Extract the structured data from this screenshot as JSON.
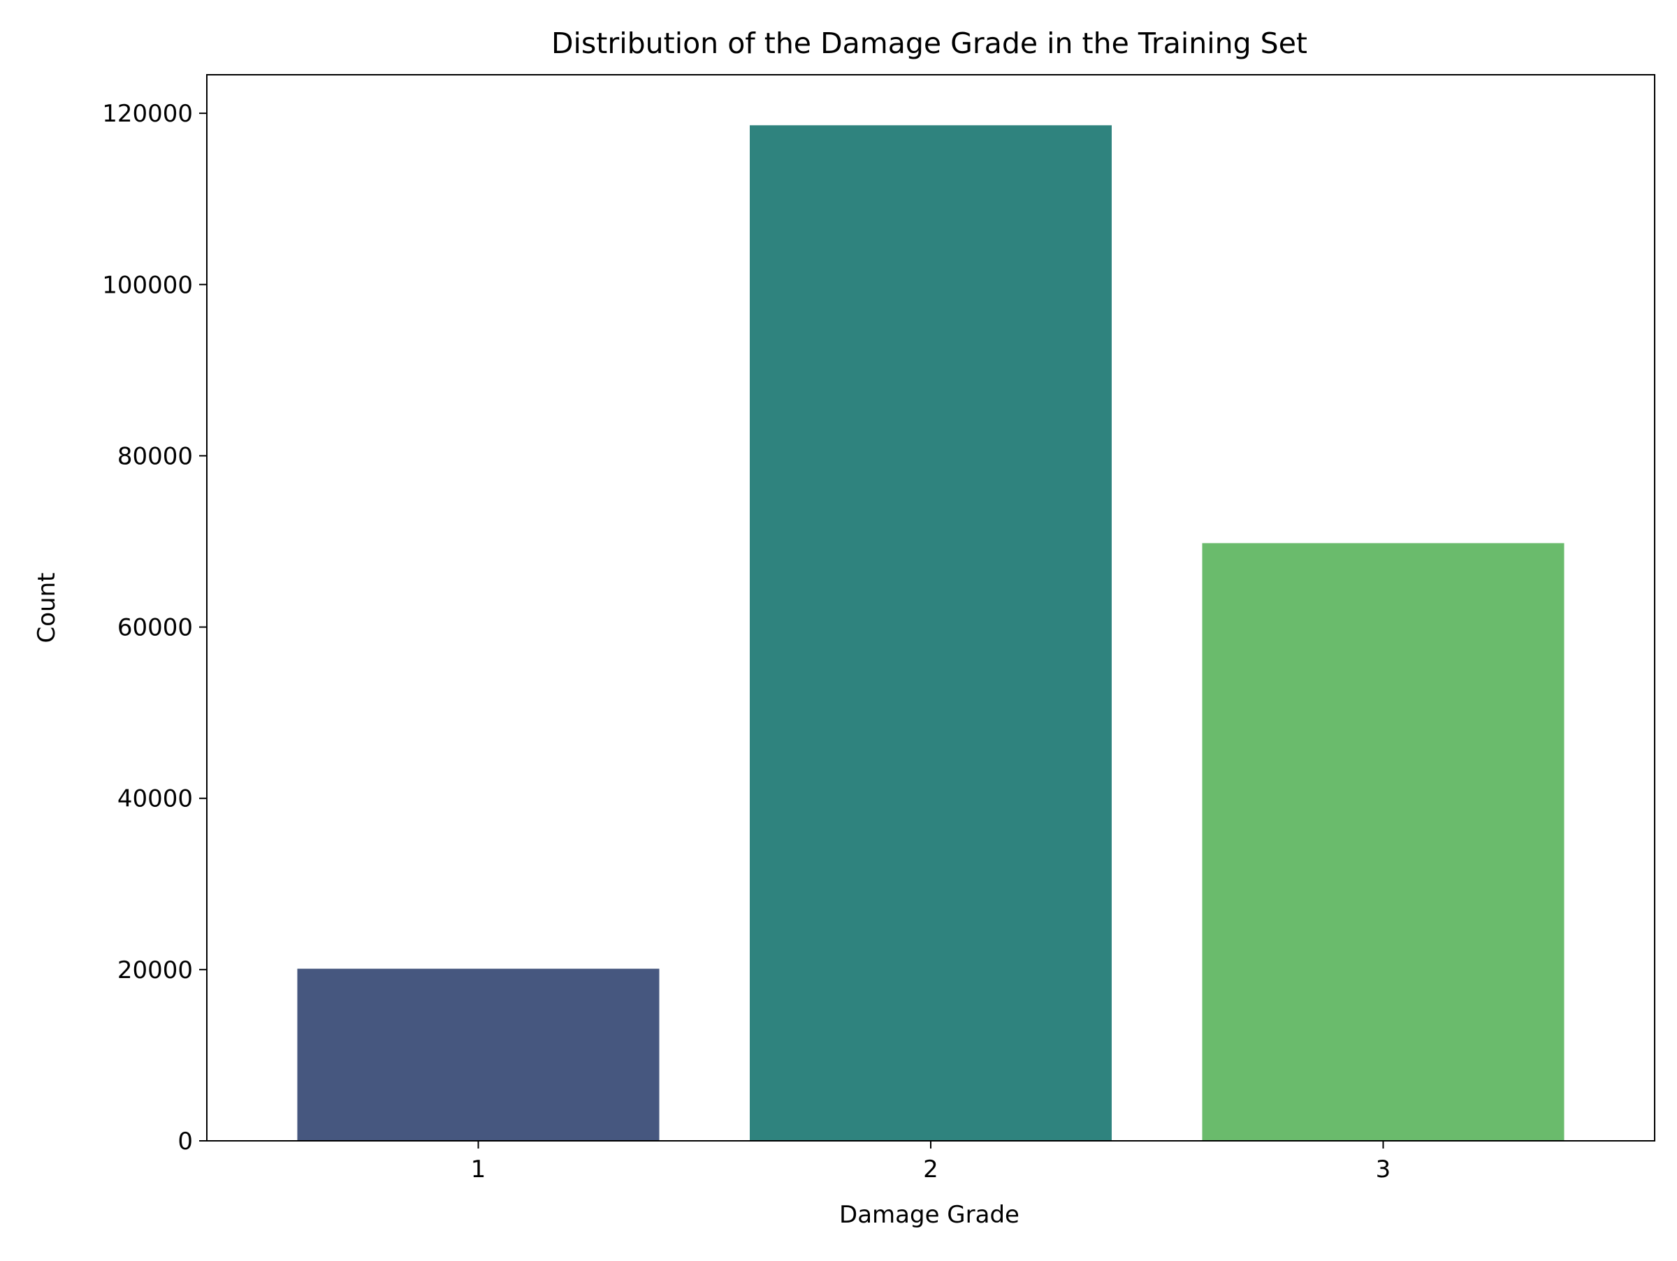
{
  "chart_data": {
    "type": "bar",
    "title": "Distribution of the Damage Grade in the Training Set",
    "xlabel": "Damage Grade",
    "ylabel": "Count",
    "categories": [
      "1",
      "2",
      "3"
    ],
    "values": [
      20100,
      118600,
      69800
    ],
    "colors": [
      "#46577f",
      "#2f837e",
      "#6abb6c"
    ],
    "ylim": [
      0,
      124500
    ],
    "yticks": [
      0,
      20000,
      40000,
      60000,
      80000,
      100000,
      120000
    ],
    "ytick_labels": [
      "0",
      "20000",
      "40000",
      "60000",
      "80000",
      "100000",
      "120000"
    ],
    "grid": false,
    "legend": "none"
  }
}
